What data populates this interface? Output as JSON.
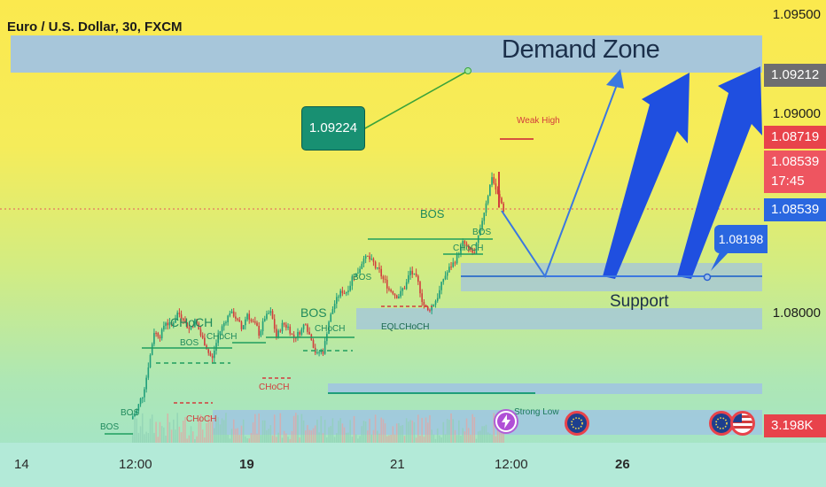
{
  "title": "Euro / U.S. Dollar, 30, FXCM",
  "price_axis": [
    "1.09500",
    "1.09000",
    "1.08000"
  ],
  "price_tags": {
    "p1": "1.09212",
    "p2": "1.08719",
    "p3": "1.08539",
    "countdown": "17:45",
    "p4": "1.08539",
    "volume": "3.198K"
  },
  "date_axis": {
    "d1": "14",
    "d2": "12:00",
    "d3": "19",
    "d4": "21",
    "d5": "12:00",
    "d6": "26"
  },
  "callouts": {
    "target_price": "1.09224",
    "support_price": "1.08198"
  },
  "zones": {
    "demand": "Demand Zone",
    "support": "Support"
  },
  "annotations": {
    "weak_high": "Weak High",
    "strong_low": "Strong Low",
    "bos": "BOS",
    "choch": "CHoCH",
    "eql_choch": "EQLCHoCH"
  },
  "colors": {
    "bull": "#1f9e7a",
    "bear": "#d23c3c",
    "zone": "#9fc2e6",
    "arrow": "#1f4fe0",
    "structure": "#1f9e5e"
  },
  "chart_data": {
    "type": "candlestick",
    "title": "Euro / U.S. Dollar, 30, FXCM",
    "y_ticks": [
      1.095,
      1.09,
      1.08
    ],
    "x_ticks": [
      "14",
      "12:00",
      "19",
      "21",
      "12:00",
      "26"
    ],
    "last_price": 1.08539,
    "high_marker": 1.08719,
    "demand_zone_target": 1.09212,
    "target_callout": 1.09224,
    "support_callout": 1.08198,
    "volume_last": "3.198K",
    "close_path": [
      1.0752,
      1.076,
      1.0775,
      1.0792,
      1.079,
      1.0797,
      1.0795,
      1.0801,
      1.0799,
      1.0793,
      1.0797,
      1.079,
      1.0784,
      1.0778,
      1.079,
      1.0796,
      1.0802,
      1.0799,
      1.0793,
      1.0801,
      1.0796,
      1.0791,
      1.0799,
      1.0801,
      1.0789,
      1.0795,
      1.0794,
      1.0789,
      1.0792,
      1.0797,
      1.0789,
      1.078,
      1.0782,
      1.0797,
      1.0806,
      1.0811,
      1.0812,
      1.0819,
      1.0822,
      1.083,
      1.0828,
      1.0824,
      1.082,
      1.0815,
      1.0812,
      1.081,
      1.0814,
      1.0822,
      1.0818,
      1.0808,
      1.0802,
      1.0806,
      1.0812,
      1.082,
      1.0825,
      1.0829,
      1.0836,
      1.0832,
      1.083,
      1.0842,
      1.0857,
      1.087,
      1.086,
      1.0853
    ]
  }
}
